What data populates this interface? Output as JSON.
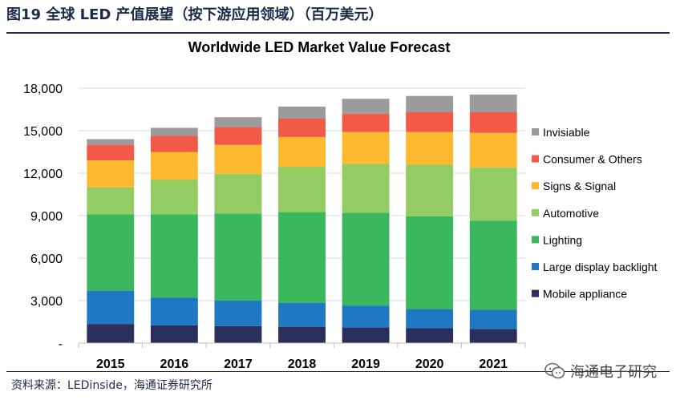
{
  "header": {
    "figure_title": "图19 全球 LED 产值展望（按下游应用领域）（百万美元）"
  },
  "footer": {
    "source": "资料来源：LEDinside，海通证券研究所",
    "watermark": "海通电子研究"
  },
  "chart_data": {
    "type": "bar",
    "stacked": true,
    "title": "Worldwide LED Market Value Forecast",
    "xlabel": "",
    "ylabel": "",
    "categories": [
      "2015",
      "2016",
      "2017",
      "2018",
      "2019",
      "2020",
      "2021"
    ],
    "ylim": [
      0,
      18000
    ],
    "yticks": [
      0,
      3000,
      6000,
      9000,
      12000,
      15000,
      18000
    ],
    "ytick_labels": [
      "-",
      "3,000",
      "6,000",
      "9,000",
      "12,000",
      "15,000",
      "18,000"
    ],
    "grid": true,
    "legend_position": "right",
    "series": [
      {
        "name": "Mobile appliance",
        "color": "#2b2f5c",
        "values": [
          1350,
          1250,
          1200,
          1150,
          1100,
          1050,
          1000
        ]
      },
      {
        "name": "Large display backlight",
        "color": "#1f78c1",
        "values": [
          2350,
          1950,
          1800,
          1700,
          1550,
          1350,
          1350
        ]
      },
      {
        "name": "Lighting",
        "color": "#3bb75e",
        "values": [
          5400,
          5900,
          6150,
          6400,
          6550,
          6550,
          6300
        ]
      },
      {
        "name": "Automotive",
        "color": "#92cc62",
        "values": [
          1900,
          2450,
          2800,
          3200,
          3450,
          3650,
          3750
        ]
      },
      {
        "name": "Signs & Signal",
        "color": "#fdba30",
        "values": [
          1900,
          1950,
          2050,
          2100,
          2250,
          2300,
          2450
        ]
      },
      {
        "name": "Consumer & Others",
        "color": "#f05a46",
        "values": [
          1100,
          1150,
          1250,
          1300,
          1300,
          1400,
          1450
        ]
      },
      {
        "name": "Invisiable",
        "color": "#9b9b9b",
        "values": [
          400,
          550,
          700,
          850,
          1050,
          1150,
          1250
        ]
      }
    ]
  }
}
